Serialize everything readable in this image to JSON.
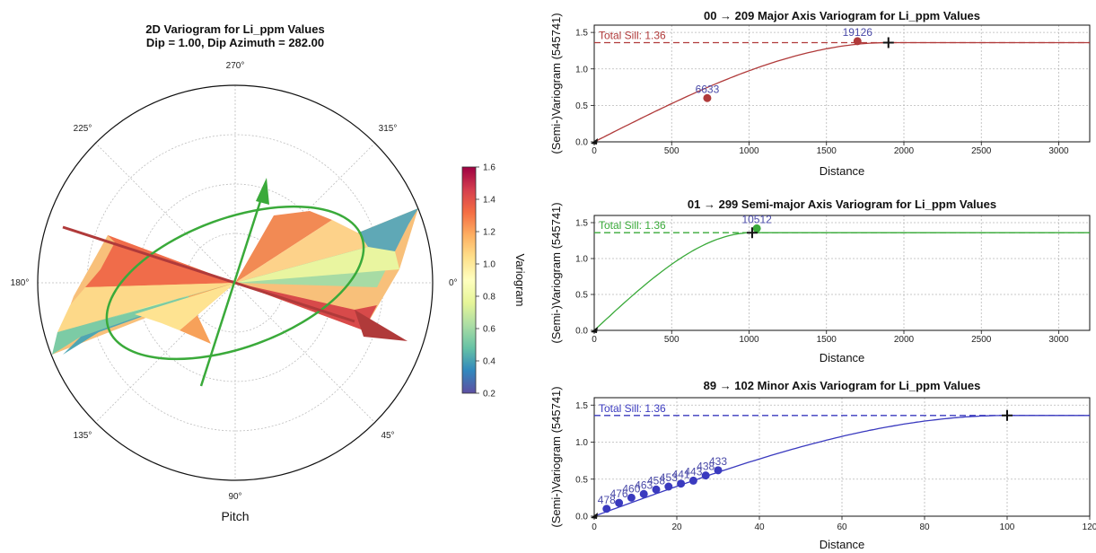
{
  "polar": {
    "title_line1": "2D Variogram for Li_ppm Values",
    "title_line2": "Dip = 1.00, Dip Azimuth = 282.00",
    "angle_labels": [
      "0°",
      "45°",
      "90°",
      "135°",
      "180°",
      "225°",
      "270°",
      "315°"
    ],
    "xlabel": "Pitch",
    "colorbar": {
      "label": "Variogram",
      "ticks_right": [
        "1.6",
        "1.4",
        "1.2",
        "1.0",
        "0.8",
        "0.6",
        "0.4",
        "0.2"
      ],
      "ticks_overlap": [
        "1.6",
        "1.4",
        "0.4",
        "0.2"
      ],
      "range": [
        0.2,
        1.6
      ],
      "colormap": "Spectral_r"
    },
    "major_arrow_color": "#b03a3a",
    "minor_arrow_color": "#3aaa3a"
  },
  "chart_data": [
    {
      "type": "line",
      "title": "00 → 209 Major Axis Variogram for Li_ppm Values",
      "xlabel": "Distance",
      "ylabel": "(Semi-)Variogram (545741)",
      "xlim": [
        0,
        3200
      ],
      "ylim": [
        0,
        1.6
      ],
      "xticks": [
        "0",
        "500",
        "1000",
        "1500",
        "2000",
        "2500",
        "3000"
      ],
      "yticks": [
        "0.0",
        "0.5",
        "1.0",
        "1.5"
      ],
      "color": "#b03a3a",
      "sill": 1.36,
      "sill_label": "Total Sill: 1.36",
      "range_marker": [
        1900,
        1.36
      ],
      "model": "spherical",
      "model_range": 1900,
      "points": [
        {
          "x": 0,
          "y": 0,
          "label": ""
        },
        {
          "x": 730,
          "y": 0.6,
          "label": "6633"
        },
        {
          "x": 1700,
          "y": 1.38,
          "label": "19126"
        }
      ]
    },
    {
      "type": "line",
      "title": "01 → 299 Semi-major Axis Variogram for Li_ppm Values",
      "xlabel": "Distance",
      "ylabel": "(Semi-)Variogram (545741)",
      "xlim": [
        0,
        3200
      ],
      "ylim": [
        0,
        1.6
      ],
      "xticks": [
        "0",
        "500",
        "1000",
        "1500",
        "2000",
        "2500",
        "3000"
      ],
      "yticks": [
        "0.0",
        "0.5",
        "1.0",
        "1.5"
      ],
      "color": "#3aaa3a",
      "sill": 1.36,
      "sill_label": "Total Sill: 1.36",
      "range_marker": [
        1020,
        1.36
      ],
      "model": "spherical",
      "model_range": 1020,
      "points": [
        {
          "x": 0,
          "y": 0,
          "label": ""
        },
        {
          "x": 1050,
          "y": 1.42,
          "label": "10512"
        }
      ]
    },
    {
      "type": "line",
      "title": "89 → 102 Minor Axis Variogram for Li_ppm Values",
      "xlabel": "Distance",
      "ylabel": "(Semi-)Variogram (545741)",
      "xlim": [
        0,
        120
      ],
      "ylim": [
        0,
        1.6
      ],
      "xticks": [
        "0",
        "20",
        "40",
        "60",
        "80",
        "100",
        "120"
      ],
      "yticks": [
        "0.0",
        "0.5",
        "1.0",
        "1.5"
      ],
      "color": "#3a3abf",
      "sill": 1.36,
      "sill_label": "Total Sill: 1.36",
      "range_marker": [
        100,
        1.36
      ],
      "model": "spherical",
      "model_range": 100,
      "points": [
        {
          "x": 0,
          "y": 0,
          "label": ""
        },
        {
          "x": 3,
          "y": 0.1,
          "label": "478"
        },
        {
          "x": 6,
          "y": 0.18,
          "label": "476"
        },
        {
          "x": 9,
          "y": 0.25,
          "label": "460"
        },
        {
          "x": 12,
          "y": 0.3,
          "label": "463"
        },
        {
          "x": 15,
          "y": 0.36,
          "label": "458"
        },
        {
          "x": 18,
          "y": 0.4,
          "label": "453"
        },
        {
          "x": 21,
          "y": 0.44,
          "label": "441"
        },
        {
          "x": 24,
          "y": 0.48,
          "label": "443"
        },
        {
          "x": 27,
          "y": 0.55,
          "label": "438"
        },
        {
          "x": 30,
          "y": 0.62,
          "label": "433"
        }
      ]
    }
  ]
}
